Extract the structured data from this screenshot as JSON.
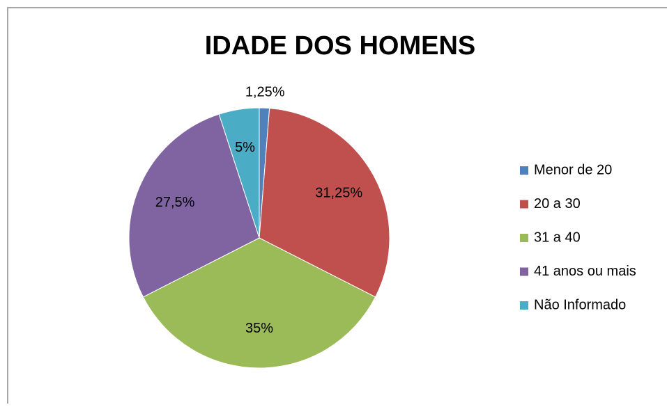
{
  "chart_data": {
    "type": "pie",
    "title": "IDADE DOS HOMENS",
    "categories": [
      "Menor de 20",
      "20 a 30",
      "31 a 40",
      "41 anos ou mais",
      "Não Informado"
    ],
    "values": [
      1.25,
      31.25,
      35,
      27.5,
      5
    ],
    "value_labels": [
      "1,25%",
      "31,25%",
      "35%",
      "27,5%",
      "5%"
    ],
    "colors": [
      "#4f81bd",
      "#c0504d",
      "#9bbb59",
      "#8064a2",
      "#4bacc6"
    ],
    "legend": "right"
  }
}
